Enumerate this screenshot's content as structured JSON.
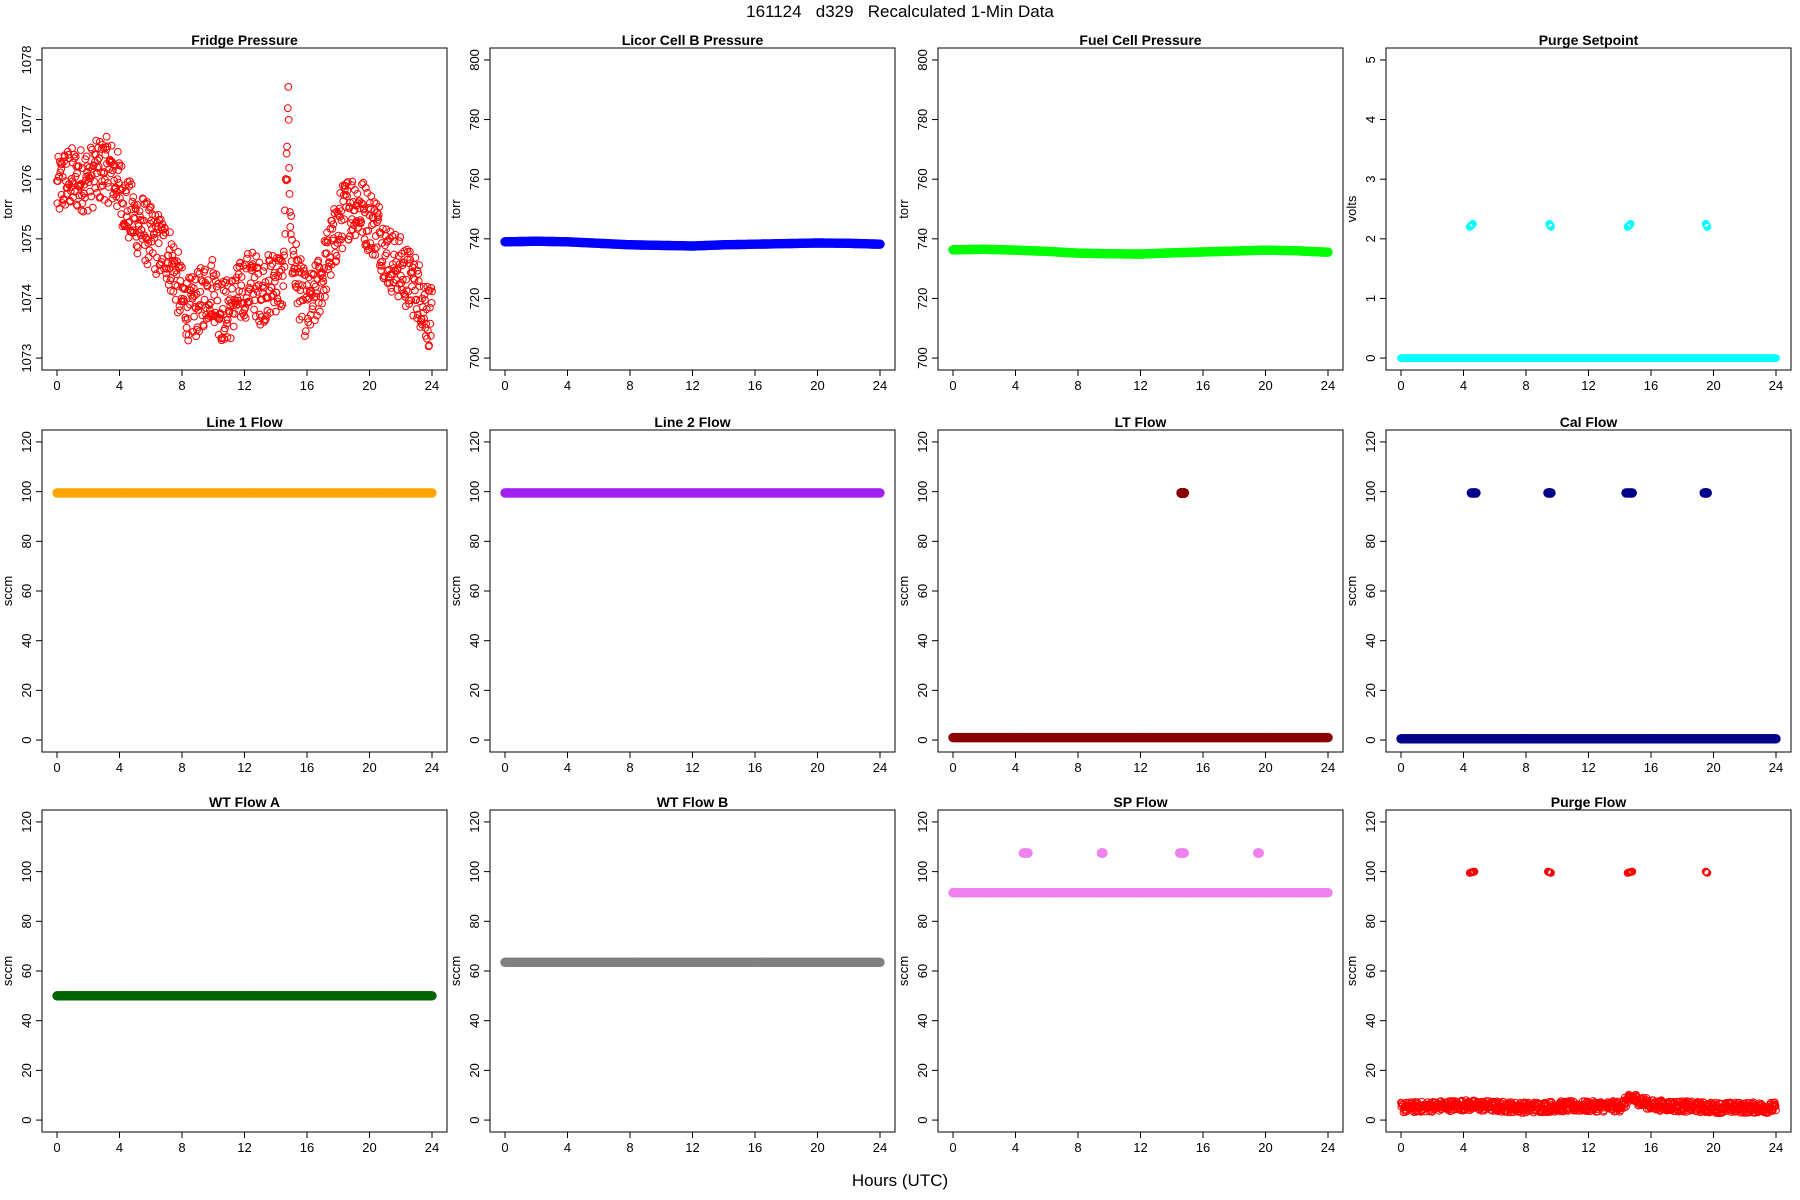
{
  "page": {
    "title": "161124   d329   Recalculated 1-Min Data",
    "xlabel": "Hours (UTC)"
  },
  "chart_data": [
    {
      "type": "scatter",
      "title": "Fridge Pressure",
      "ylabel": "torr",
      "xlim": [
        0,
        24
      ],
      "ylim": [
        1073,
        1078
      ],
      "xticks": [
        0,
        4,
        8,
        12,
        16,
        20,
        24
      ],
      "yticks": [
        1073,
        1074,
        1075,
        1076,
        1077,
        1078
      ],
      "color": "#ff0000",
      "marker": "open-circle",
      "series": [
        {
          "x": [
            0,
            0.5,
            1,
            1.5,
            2,
            2.5,
            3,
            3.5,
            4,
            4.5,
            5,
            5.5,
            6,
            6.5,
            7,
            7.5,
            8,
            8.5,
            9,
            9.5,
            10,
            10.5,
            11,
            11.5,
            12,
            12.5,
            13,
            13.5,
            14,
            14.5,
            14.8,
            15,
            15.5,
            16,
            16.5,
            17,
            17.5,
            18,
            18.5,
            19,
            19.5,
            20,
            20.5,
            21,
            21.5,
            22,
            22.5,
            23,
            23.5,
            24
          ],
          "y": [
            1075.8,
            1076.0,
            1076.0,
            1076.0,
            1076.0,
            1076.1,
            1076.2,
            1076.1,
            1075.9,
            1075.5,
            1075.3,
            1075.2,
            1075.0,
            1074.9,
            1074.8,
            1074.5,
            1074.0,
            1073.8,
            1073.9,
            1074.1,
            1074.2,
            1073.8,
            1073.8,
            1074.0,
            1074.2,
            1074.3,
            1074.1,
            1074.2,
            1074.3,
            1074.3,
            1077.0,
            1074.8,
            1074.2,
            1073.8,
            1074.0,
            1074.4,
            1074.8,
            1075.2,
            1075.5,
            1075.6,
            1075.5,
            1075.3,
            1075.2,
            1074.8,
            1074.6,
            1074.5,
            1074.3,
            1074.2,
            1073.9,
            1073.6
          ]
        }
      ]
    },
    {
      "type": "scatter",
      "title": "Licor Cell B Pressure",
      "ylabel": "torr",
      "xlim": [
        0,
        24
      ],
      "ylim": [
        700,
        800
      ],
      "xticks": [
        0,
        4,
        8,
        12,
        16,
        20,
        24
      ],
      "yticks": [
        700,
        720,
        740,
        760,
        780,
        800
      ],
      "color": "#0000ff",
      "marker": "filled-circle",
      "series": [
        {
          "x": [
            0,
            2,
            4,
            6,
            8,
            10,
            12,
            14,
            16,
            18,
            20,
            22,
            24
          ],
          "y": [
            739,
            739.2,
            739,
            738.5,
            738,
            737.8,
            737.6,
            738,
            738.2,
            738.4,
            738.6,
            738.5,
            738.2
          ]
        }
      ]
    },
    {
      "type": "scatter",
      "title": "Fuel Cell Pressure",
      "ylabel": "torr",
      "xlim": [
        0,
        24
      ],
      "ylim": [
        700,
        800
      ],
      "xticks": [
        0,
        4,
        8,
        12,
        16,
        20,
        24
      ],
      "yticks": [
        700,
        720,
        740,
        760,
        780,
        800
      ],
      "color": "#00ff00",
      "marker": "filled-circle",
      "series": [
        {
          "x": [
            0,
            2,
            4,
            6,
            8,
            10,
            12,
            14,
            16,
            18,
            20,
            22,
            24
          ],
          "y": [
            736.3,
            736.5,
            736.2,
            735.8,
            735.2,
            735,
            734.9,
            735.3,
            735.6,
            735.9,
            736.2,
            736,
            735.5
          ]
        }
      ]
    },
    {
      "type": "scatter",
      "title": "Purge Setpoint",
      "ylabel": "volts",
      "xlim": [
        0,
        24
      ],
      "ylim": [
        0,
        5
      ],
      "xticks": [
        0,
        4,
        8,
        12,
        16,
        20,
        24
      ],
      "yticks": [
        0,
        1,
        2,
        3,
        4,
        5
      ],
      "color": "#00ffff",
      "marker": "open-circle",
      "series": [
        {
          "x": [
            0,
            4,
            8,
            12,
            16,
            20,
            24
          ],
          "y": [
            0,
            0,
            0,
            0,
            0,
            0,
            0
          ]
        },
        {
          "x": [
            4.4,
            4.6,
            9.5,
            9.6,
            14.5,
            14.7,
            19.5,
            19.6
          ],
          "y": [
            2.2,
            2.25,
            2.25,
            2.2,
            2.2,
            2.25,
            2.25,
            2.2
          ]
        }
      ]
    },
    {
      "type": "scatter",
      "title": "Line 1 Flow",
      "ylabel": "sccm",
      "xlim": [
        0,
        24
      ],
      "ylim": [
        0,
        120
      ],
      "xticks": [
        0,
        4,
        8,
        12,
        16,
        20,
        24
      ],
      "yticks": [
        0,
        20,
        40,
        60,
        80,
        100,
        120
      ],
      "color": "#ffa500",
      "marker": "filled-circle",
      "series": [
        {
          "x": [
            0,
            24
          ],
          "y": [
            99.5,
            99.5
          ]
        }
      ]
    },
    {
      "type": "scatter",
      "title": "Line 2 Flow",
      "ylabel": "sccm",
      "xlim": [
        0,
        24
      ],
      "ylim": [
        0,
        120
      ],
      "xticks": [
        0,
        4,
        8,
        12,
        16,
        20,
        24
      ],
      "yticks": [
        0,
        20,
        40,
        60,
        80,
        100,
        120
      ],
      "color": "#a020f0",
      "marker": "filled-circle",
      "series": [
        {
          "x": [
            0,
            24
          ],
          "y": [
            99.5,
            99.5
          ]
        }
      ]
    },
    {
      "type": "scatter",
      "title": "LT Flow",
      "ylabel": "sccm",
      "xlim": [
        0,
        24
      ],
      "ylim": [
        0,
        120
      ],
      "xticks": [
        0,
        4,
        8,
        12,
        16,
        20,
        24
      ],
      "yticks": [
        0,
        20,
        40,
        60,
        80,
        100,
        120
      ],
      "color": "#8b0000",
      "marker": "filled-circle",
      "series": [
        {
          "x": [
            0,
            24
          ],
          "y": [
            1,
            1
          ]
        },
        {
          "x": [
            14.6,
            14.8
          ],
          "y": [
            99.5,
            99.5
          ]
        }
      ]
    },
    {
      "type": "scatter",
      "title": "Cal Flow",
      "ylabel": "sccm",
      "xlim": [
        0,
        24
      ],
      "ylim": [
        0,
        120
      ],
      "xticks": [
        0,
        4,
        8,
        12,
        16,
        20,
        24
      ],
      "yticks": [
        0,
        20,
        40,
        60,
        80,
        100,
        120
      ],
      "color": "#00008b",
      "marker": "filled-circle",
      "series": [
        {
          "x": [
            0,
            24
          ],
          "y": [
            0.5,
            0.5
          ]
        },
        {
          "x": [
            4.5,
            4.8,
            9.4,
            9.6,
            14.4,
            14.8,
            19.4,
            19.6
          ],
          "y": [
            99.5,
            99.5,
            99.5,
            99.5,
            99.5,
            99.5,
            99.5,
            99.5
          ]
        }
      ]
    },
    {
      "type": "scatter",
      "title": "WT Flow A",
      "ylabel": "sccm",
      "xlim": [
        0,
        24
      ],
      "ylim": [
        0,
        120
      ],
      "xticks": [
        0,
        4,
        8,
        12,
        16,
        20,
        24
      ],
      "yticks": [
        0,
        20,
        40,
        60,
        80,
        100,
        120
      ],
      "color": "#006400",
      "marker": "filled-circle",
      "series": [
        {
          "x": [
            0,
            24
          ],
          "y": [
            50,
            50
          ]
        }
      ]
    },
    {
      "type": "scatter",
      "title": "WT Flow B",
      "ylabel": "sccm",
      "xlim": [
        0,
        24
      ],
      "ylim": [
        0,
        120
      ],
      "xticks": [
        0,
        4,
        8,
        12,
        16,
        20,
        24
      ],
      "yticks": [
        0,
        20,
        40,
        60,
        80,
        100,
        120
      ],
      "color": "#808080",
      "marker": "filled-circle",
      "series": [
        {
          "x": [
            0,
            24
          ],
          "y": [
            63.5,
            63.5
          ]
        }
      ]
    },
    {
      "type": "scatter",
      "title": "SP Flow",
      "ylabel": "sccm",
      "xlim": [
        0,
        24
      ],
      "ylim": [
        0,
        120
      ],
      "xticks": [
        0,
        4,
        8,
        12,
        16,
        20,
        24
      ],
      "yticks": [
        0,
        20,
        40,
        60,
        80,
        100,
        120
      ],
      "color": "#ee82ee",
      "marker": "filled-circle",
      "series": [
        {
          "x": [
            0,
            24
          ],
          "y": [
            91.5,
            91.5
          ]
        },
        {
          "x": [
            4.5,
            4.8,
            9.5,
            9.6,
            14.5,
            14.8,
            19.5,
            19.6
          ],
          "y": [
            107.5,
            107.5,
            107.5,
            107.5,
            107.5,
            107.5,
            107.5,
            107.5
          ]
        }
      ]
    },
    {
      "type": "scatter",
      "title": "Purge Flow",
      "ylabel": "sccm",
      "xlim": [
        0,
        24
      ],
      "ylim": [
        0,
        120
      ],
      "xticks": [
        0,
        4,
        8,
        12,
        16,
        20,
        24
      ],
      "yticks": [
        0,
        20,
        40,
        60,
        80,
        100,
        120
      ],
      "color": "#ff0000",
      "marker": "open-circle",
      "series": [
        {
          "x": [
            0,
            2,
            4,
            6,
            8,
            10,
            12,
            14,
            14.8,
            16,
            18,
            20,
            22,
            24
          ],
          "y": [
            5,
            5.5,
            6,
            5.5,
            5,
            5.5,
            5.5,
            5.5,
            9,
            6,
            5.5,
            5,
            5,
            5
          ]
        },
        {
          "x": [
            4.4,
            4.7,
            9.4,
            9.6,
            14.5,
            14.8,
            19.5,
            19.6
          ],
          "y": [
            99.5,
            100,
            100,
            99.5,
            99.5,
            100,
            100,
            99.5
          ]
        }
      ]
    }
  ]
}
